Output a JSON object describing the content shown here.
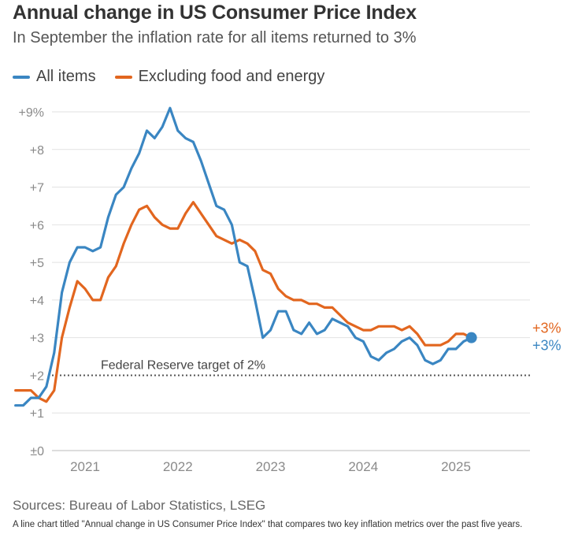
{
  "header": {
    "title": "Annual change in US Consumer Price Index",
    "subtitle": "In September the inflation rate for all items returned to 3%"
  },
  "legend": {
    "items": [
      {
        "label": "All items",
        "color": "#3a86c2"
      },
      {
        "label": "Excluding food and energy",
        "color": "#e2661f"
      }
    ]
  },
  "annotation": {
    "target_label": "Federal Reserve target of 2%",
    "end_label_all": "+3%",
    "end_label_core": "+3%"
  },
  "footer": {
    "source": "Sources: Bureau of Labor Statistics, LSEG",
    "caption": "A line chart titled \"Annual change in US Consumer Price Index\" that compares two key inflation metrics over the past five years."
  },
  "chart_data": {
    "type": "line",
    "title": "Annual change in US Consumer Price Index",
    "x_ticks": [
      "2021",
      "2022",
      "2023",
      "2024",
      "2025"
    ],
    "y_tick_labels": [
      "±0",
      "+1",
      "+2",
      "+3",
      "+4",
      "+5",
      "+6",
      "+7",
      "+8",
      "+9%"
    ],
    "ylim": [
      0,
      9.5
    ],
    "reference_line": {
      "value": 2,
      "label": "Federal Reserve target of 2%",
      "style": "dotted"
    },
    "grid": true,
    "legend_position": "top-left",
    "x": [
      "2020-10",
      "2020-11",
      "2020-12",
      "2021-01",
      "2021-02",
      "2021-03",
      "2021-04",
      "2021-05",
      "2021-06",
      "2021-07",
      "2021-08",
      "2021-09",
      "2021-10",
      "2021-11",
      "2021-12",
      "2022-01",
      "2022-02",
      "2022-03",
      "2022-04",
      "2022-05",
      "2022-06",
      "2022-07",
      "2022-08",
      "2022-09",
      "2022-10",
      "2022-11",
      "2022-12",
      "2023-01",
      "2023-02",
      "2023-03",
      "2023-04",
      "2023-05",
      "2023-06",
      "2023-07",
      "2023-08",
      "2023-09",
      "2023-10",
      "2023-11",
      "2023-12",
      "2024-01",
      "2024-02",
      "2024-03",
      "2024-04",
      "2024-05",
      "2024-06",
      "2024-07",
      "2024-08",
      "2024-09",
      "2024-10",
      "2024-11",
      "2024-12",
      "2025-01",
      "2025-02",
      "2025-03",
      "2025-04",
      "2025-05",
      "2025-06",
      "2025-07",
      "2025-08",
      "2025-09"
    ],
    "series": [
      {
        "name": "All items",
        "color": "#3a86c2",
        "values": [
          1.2,
          1.2,
          1.4,
          1.4,
          1.7,
          2.6,
          4.2,
          5.0,
          5.4,
          5.4,
          5.3,
          5.4,
          6.2,
          6.8,
          7.0,
          7.5,
          7.9,
          8.5,
          8.3,
          8.6,
          9.1,
          8.5,
          8.3,
          8.2,
          7.7,
          7.1,
          6.5,
          6.4,
          6.0,
          5.0,
          4.9,
          4.0,
          3.0,
          3.2,
          3.7,
          3.7,
          3.2,
          3.1,
          3.4,
          3.1,
          3.2,
          3.5,
          3.4,
          3.3,
          3.0,
          2.9,
          2.5,
          2.4,
          2.6,
          2.7,
          2.9,
          3.0,
          2.8,
          2.4,
          2.3,
          2.4,
          2.7,
          2.7,
          2.9,
          3.0
        ]
      },
      {
        "name": "Excluding food and energy",
        "color": "#e2661f",
        "values": [
          1.6,
          1.6,
          1.6,
          1.4,
          1.3,
          1.6,
          3.0,
          3.8,
          4.5,
          4.3,
          4.0,
          4.0,
          4.6,
          4.9,
          5.5,
          6.0,
          6.4,
          6.5,
          6.2,
          6.0,
          5.9,
          5.9,
          6.3,
          6.6,
          6.3,
          6.0,
          5.7,
          5.6,
          5.5,
          5.6,
          5.5,
          5.3,
          4.8,
          4.7,
          4.3,
          4.1,
          4.0,
          4.0,
          3.9,
          3.9,
          3.8,
          3.8,
          3.6,
          3.4,
          3.3,
          3.2,
          3.2,
          3.3,
          3.3,
          3.3,
          3.2,
          3.3,
          3.1,
          2.8,
          2.8,
          2.8,
          2.9,
          3.1,
          3.1,
          3.0
        ]
      }
    ]
  }
}
